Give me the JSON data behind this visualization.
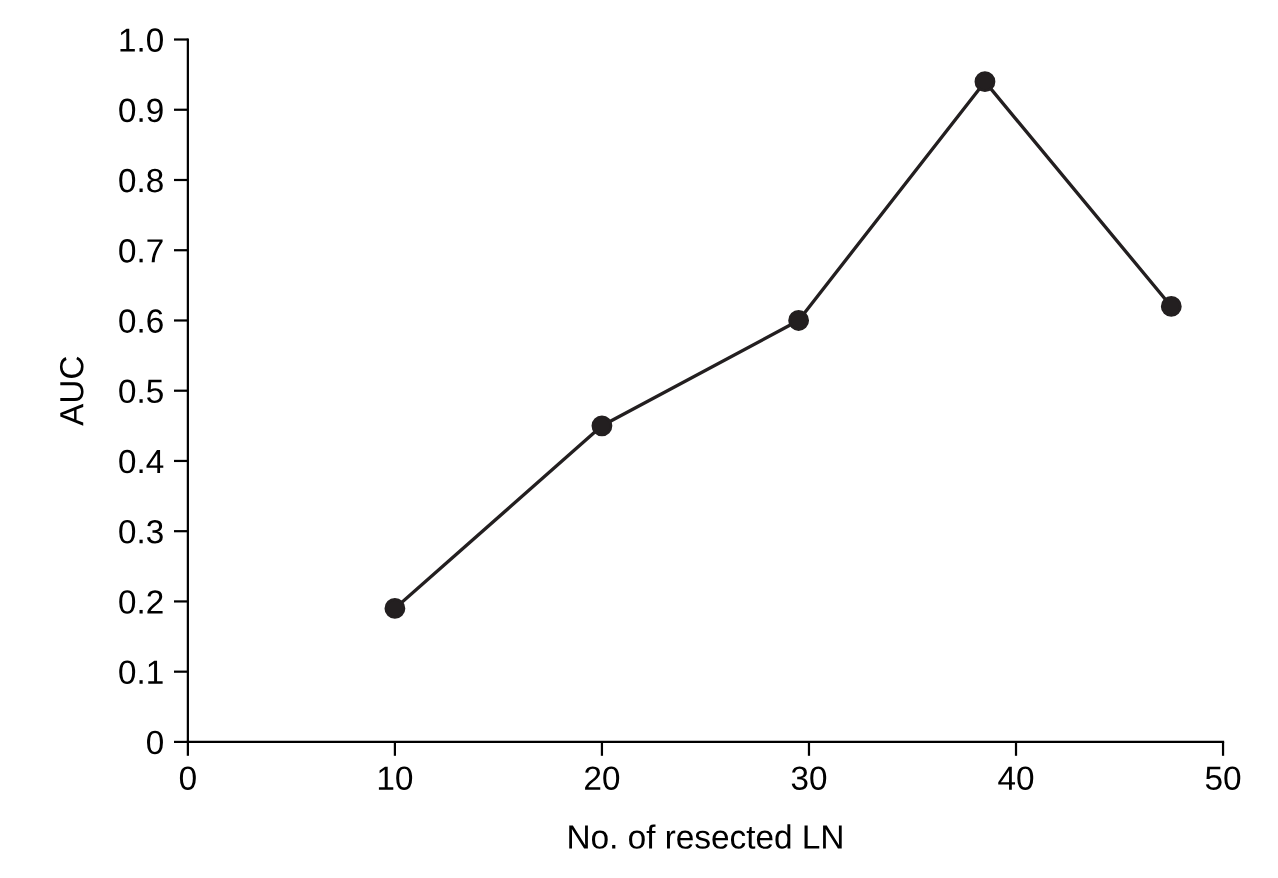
{
  "chart_data": {
    "type": "line",
    "xlabel": "No. of resected LN",
    "ylabel": "AUC",
    "x": [
      10,
      20,
      29.5,
      38.5,
      47.5
    ],
    "series": [
      {
        "color": "#231f20",
        "values": [
          0.19,
          0.45,
          0.6,
          0.94,
          0.62
        ]
      }
    ],
    "xlim": [
      0,
      50
    ],
    "xticks": [
      0,
      10,
      20,
      30,
      40,
      50
    ],
    "ylim": [
      0,
      1.0
    ],
    "yticks": [
      0,
      0.1,
      0.2,
      0.3,
      0.4,
      0.5,
      0.6,
      0.7,
      0.8,
      0.9,
      {
        "value": 1.0,
        "label": "1.0"
      }
    ],
    "marker": "circle",
    "line_style": "solid",
    "grid": false,
    "legend": false
  }
}
